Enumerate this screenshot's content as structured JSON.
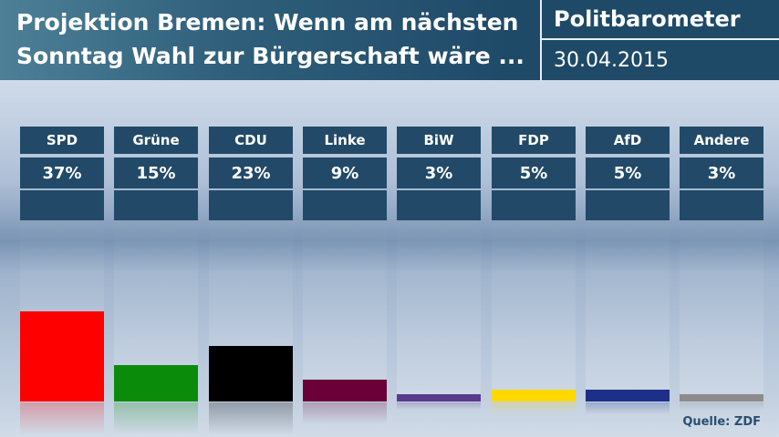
{
  "header": {
    "title": "Projektion Bremen: Wenn am nächsten\nSonntag Wahl zur Bürgerschaft wäre ...",
    "brand": "Politbarometer",
    "date": "30.04.2015"
  },
  "source": "Quelle: ZDF",
  "chart_data": {
    "type": "bar",
    "categories": [
      "SPD",
      "Grüne",
      "CDU",
      "Linke",
      "BiW",
      "FDP",
      "AfD",
      "Andere"
    ],
    "values": [
      37,
      15,
      23,
      9,
      3,
      5,
      5,
      3
    ],
    "value_labels": [
      "37%",
      "15%",
      "23%",
      "9%",
      "3%",
      "5%",
      "5%",
      "3%"
    ],
    "colors": [
      "#ff0000",
      "#0a8c0a",
      "#000000",
      "#6b0038",
      "#5a3a8c",
      "#ffd800",
      "#1e2f8a",
      "#8c8c8c"
    ],
    "ylim": [
      0,
      75
    ],
    "grid": false
  }
}
